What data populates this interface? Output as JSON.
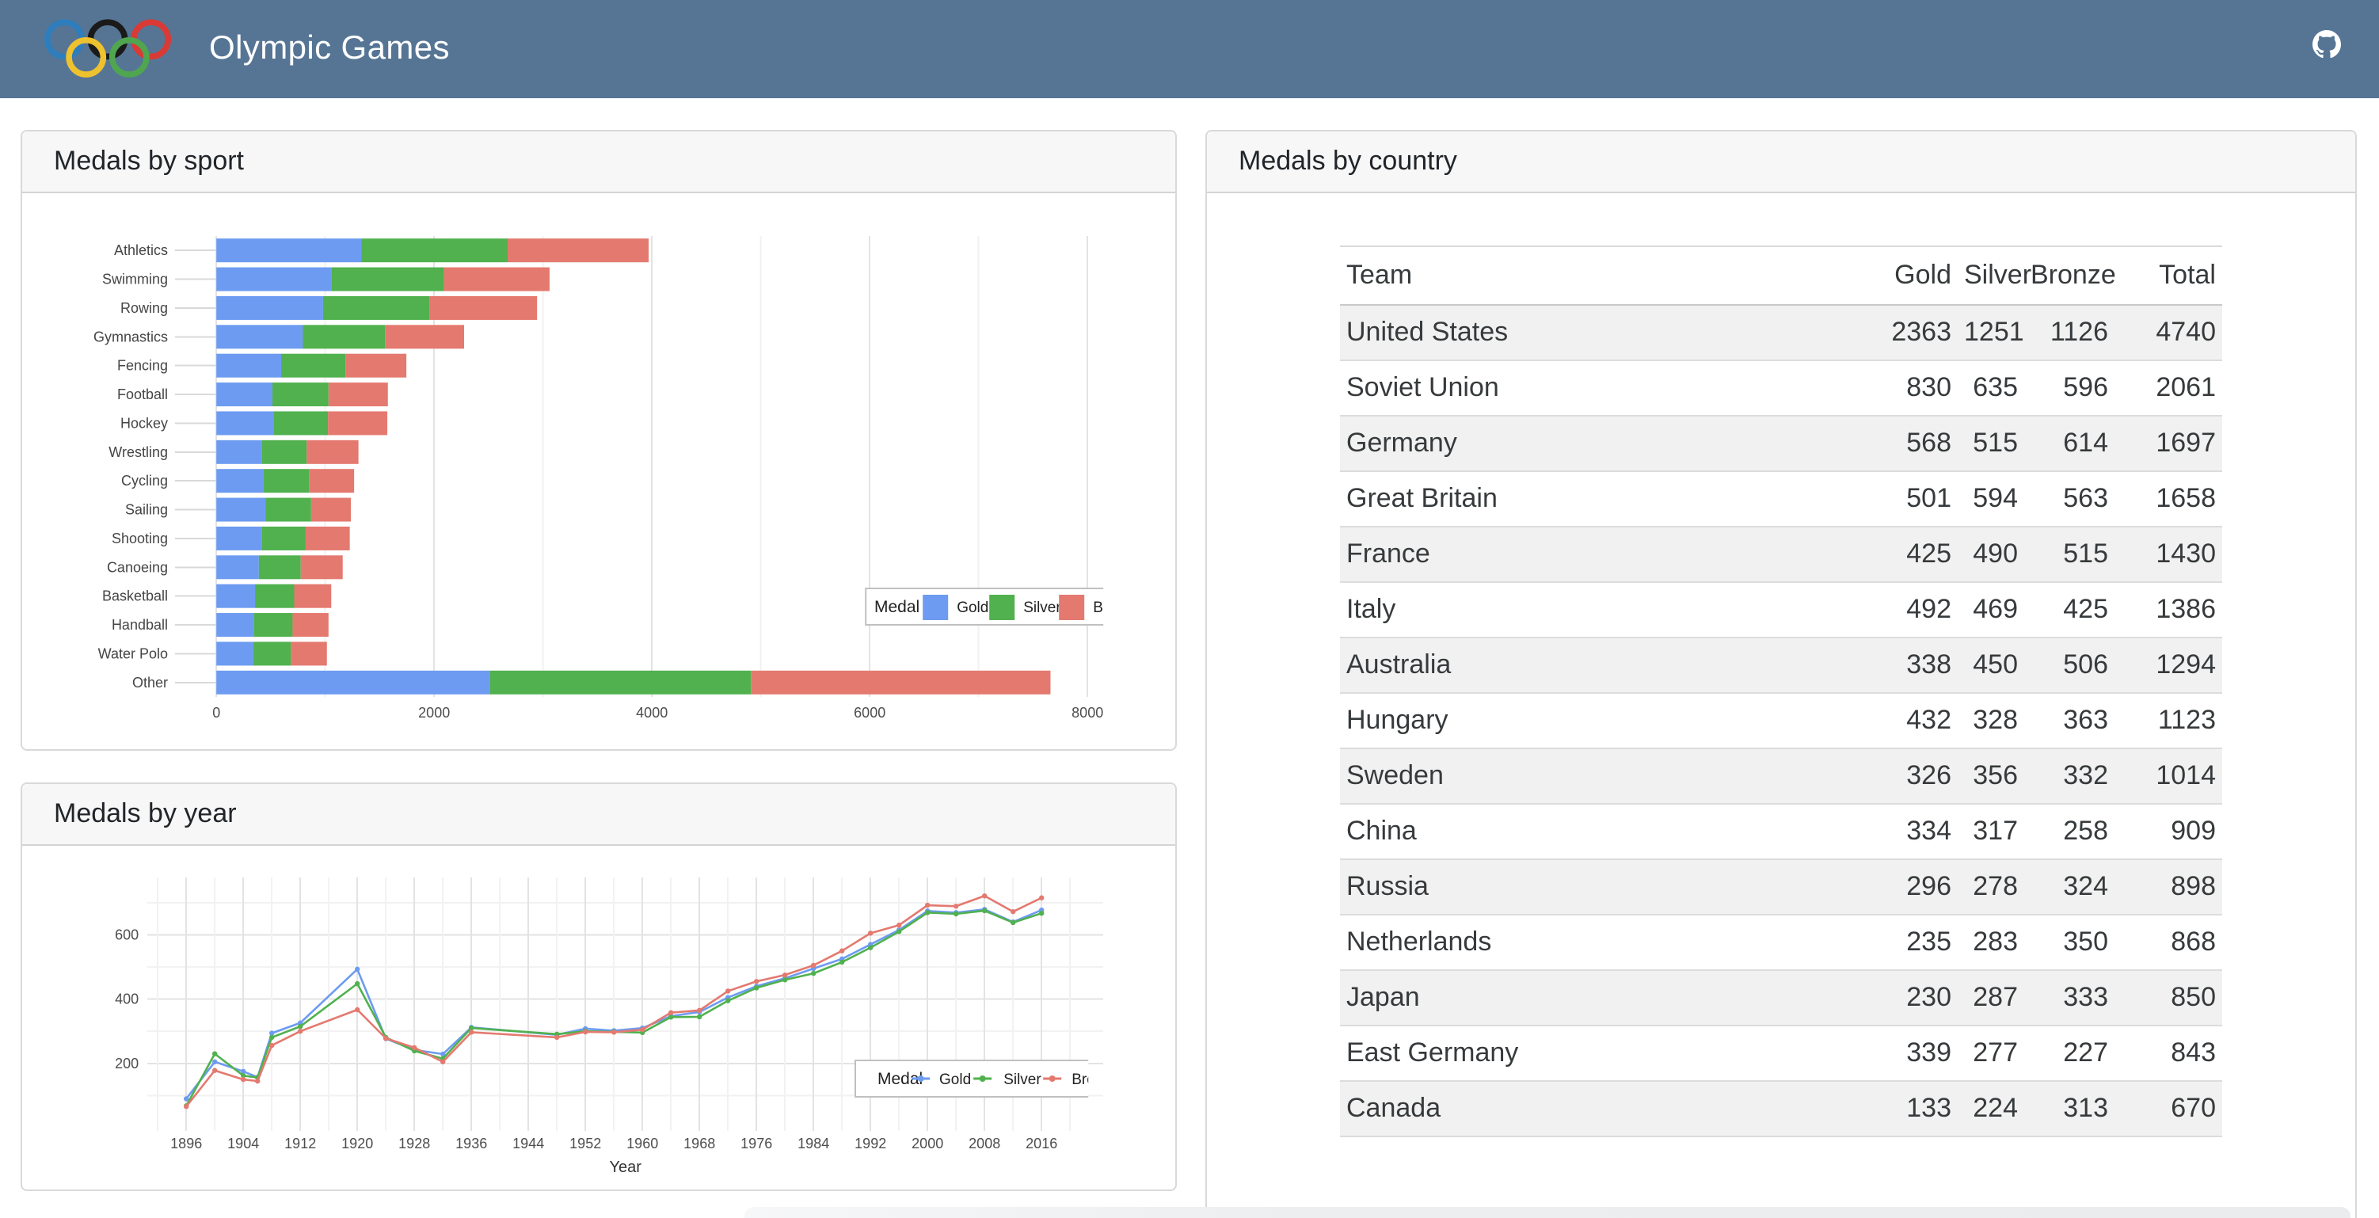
{
  "header": {
    "title": "Olympic Games",
    "background": "#567595"
  },
  "cards": {
    "sport": {
      "title": "Medals by sport"
    },
    "year": {
      "title": "Medals by year"
    },
    "country": {
      "title": "Medals by country"
    }
  },
  "palette": {
    "gold": "#6d9bf1",
    "silver": "#50b14e",
    "bronze": "#e4796f"
  },
  "chart_data": [
    {
      "id": "medals_by_sport",
      "type": "bar",
      "orientation": "horizontal",
      "stacked": true,
      "title": "Medals by sport",
      "categories": [
        "Athletics",
        "Swimming",
        "Rowing",
        "Gymnastics",
        "Fencing",
        "Football",
        "Hockey",
        "Wrestling",
        "Cycling",
        "Sailing",
        "Shooting",
        "Canoeing",
        "Basketball",
        "Handball",
        "Water Polo",
        "Other"
      ],
      "series": [
        {
          "name": "Gold",
          "color": "#6d9bf1",
          "values": [
            1330,
            1060,
            980,
            795,
            595,
            515,
            525,
            415,
            430,
            450,
            415,
            390,
            355,
            345,
            340,
            2510
          ]
        },
        {
          "name": "Silver",
          "color": "#50b14e",
          "values": [
            1345,
            1030,
            980,
            755,
            590,
            515,
            500,
            415,
            420,
            420,
            405,
            385,
            360,
            355,
            345,
            2400
          ]
        },
        {
          "name": "Bronze",
          "color": "#e4796f",
          "values": [
            1295,
            970,
            985,
            725,
            560,
            545,
            545,
            475,
            415,
            365,
            405,
            385,
            340,
            330,
            330,
            2750
          ]
        }
      ],
      "xlabel": "",
      "ylabel": "",
      "xlim": [
        0,
        8150
      ],
      "xticks": [
        0,
        2000,
        4000,
        6000,
        8000
      ],
      "grid": true,
      "legend": {
        "title": "Medal",
        "position": "inside-right",
        "clipped": true
      }
    },
    {
      "id": "medals_by_year",
      "type": "line",
      "title": "Medals by year",
      "x": [
        1896,
        1900,
        1904,
        1906,
        1908,
        1912,
        1920,
        1924,
        1928,
        1932,
        1936,
        1948,
        1952,
        1956,
        1960,
        1964,
        1968,
        1972,
        1976,
        1980,
        1984,
        1988,
        1992,
        1996,
        2000,
        2004,
        2008,
        2012,
        2016
      ],
      "series": [
        {
          "name": "Gold",
          "color": "#6d9bf1",
          "values": [
            90,
            205,
            175,
            157,
            294,
            326,
            493,
            277,
            242,
            229,
            312,
            289,
            308,
            302,
            310,
            347,
            360,
            405,
            440,
            465,
            495,
            525,
            570,
            615,
            674,
            669,
            679,
            640,
            677
          ]
        },
        {
          "name": "Silver",
          "color": "#50b14e",
          "values": [
            68,
            230,
            162,
            156,
            281,
            315,
            448,
            281,
            239,
            215,
            310,
            291,
            300,
            298,
            296,
            344,
            345,
            395,
            435,
            460,
            480,
            515,
            560,
            610,
            669,
            665,
            675,
            638,
            667
          ]
        },
        {
          "name": "Bronze",
          "color": "#e4796f",
          "values": [
            66,
            178,
            150,
            145,
            256,
            300,
            367,
            278,
            249,
            205,
            297,
            281,
            298,
            297,
            305,
            358,
            365,
            425,
            455,
            475,
            505,
            550,
            605,
            630,
            692,
            689,
            721,
            672,
            715
          ]
        }
      ],
      "xlabel": "Year",
      "ylabel": "",
      "xticks": [
        1896,
        1904,
        1912,
        1920,
        1928,
        1936,
        1944,
        1952,
        1960,
        1968,
        1976,
        1984,
        1992,
        2000,
        2008,
        2016
      ],
      "yticks": [
        200,
        400,
        600
      ],
      "ylim": [
        0,
        760
      ],
      "grid": true,
      "legend": {
        "title": "Medal",
        "position": "inside-bottom-right",
        "clipped": true
      }
    },
    {
      "id": "medals_by_country",
      "type": "table",
      "title": "Medals by country",
      "columns": [
        "Team",
        "Gold",
        "Silver",
        "Bronze",
        "Total"
      ],
      "rows": [
        [
          "United States",
          2363,
          1251,
          1126,
          4740
        ],
        [
          "Soviet Union",
          830,
          635,
          596,
          2061
        ],
        [
          "Germany",
          568,
          515,
          614,
          1697
        ],
        [
          "Great Britain",
          501,
          594,
          563,
          1658
        ],
        [
          "France",
          425,
          490,
          515,
          1430
        ],
        [
          "Italy",
          492,
          469,
          425,
          1386
        ],
        [
          "Australia",
          338,
          450,
          506,
          1294
        ],
        [
          "Hungary",
          432,
          328,
          363,
          1123
        ],
        [
          "Sweden",
          326,
          356,
          332,
          1014
        ],
        [
          "China",
          334,
          317,
          258,
          909
        ],
        [
          "Russia",
          296,
          278,
          324,
          898
        ],
        [
          "Netherlands",
          235,
          283,
          350,
          868
        ],
        [
          "Japan",
          230,
          287,
          333,
          850
        ],
        [
          "East Germany",
          339,
          277,
          227,
          843
        ],
        [
          "Canada",
          133,
          224,
          313,
          670
        ]
      ]
    }
  ],
  "logo": {
    "name": "olympic-rings",
    "colors": [
      "#2e7dbc",
      "#1a1a1a",
      "#d93a35",
      "#eec12e",
      "#4fa64f"
    ]
  },
  "icons": {
    "github": "github-icon"
  }
}
